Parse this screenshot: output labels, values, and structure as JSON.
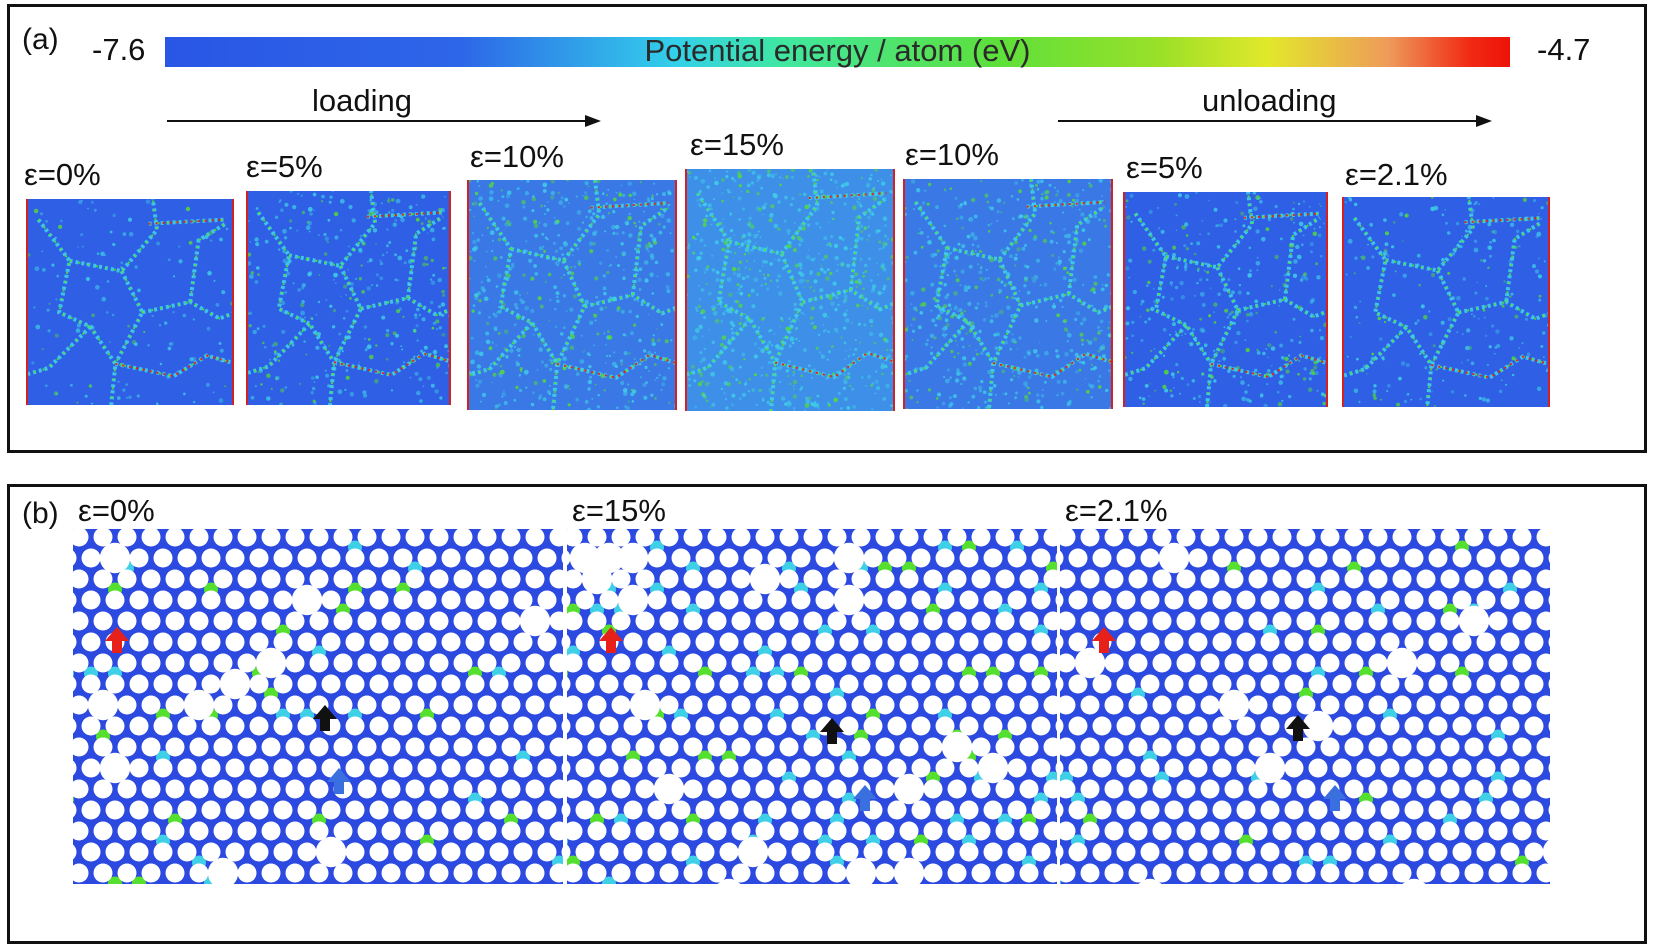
{
  "panel_a": {
    "label": "(a)",
    "colorbar": {
      "title": "Potential energy / atom (eV)",
      "min_label": "-7.6",
      "max_label": "-4.7"
    },
    "loading_label": "loading",
    "unloading_label": "unloading",
    "snapshots": [
      {
        "label": "ε=0%",
        "strain_percent": 0
      },
      {
        "label": "ε=5%",
        "strain_percent": 5
      },
      {
        "label": "ε=10%",
        "strain_percent": 10
      },
      {
        "label": "ε=15%",
        "strain_percent": 15
      },
      {
        "label": "ε=10%",
        "strain_percent": 10
      },
      {
        "label": "ε=5%",
        "strain_percent": 5
      },
      {
        "label": "ε=2.1%",
        "strain_percent": 2.1
      }
    ]
  },
  "panel_b": {
    "label": "(b)",
    "zooms": [
      {
        "label": "ε=0%",
        "strain_percent": 0
      },
      {
        "label": "ε=15%",
        "strain_percent": 15
      },
      {
        "label": "ε=2.1%",
        "strain_percent": 2.1
      }
    ],
    "marker_colors": {
      "red": "#e8201a",
      "black": "#111111",
      "blue": "#3a6fe0"
    }
  },
  "colors": {
    "blue": "#2c49e0",
    "cyan": "#3fd0e8",
    "green": "#55e030",
    "red": "#e8201a"
  }
}
